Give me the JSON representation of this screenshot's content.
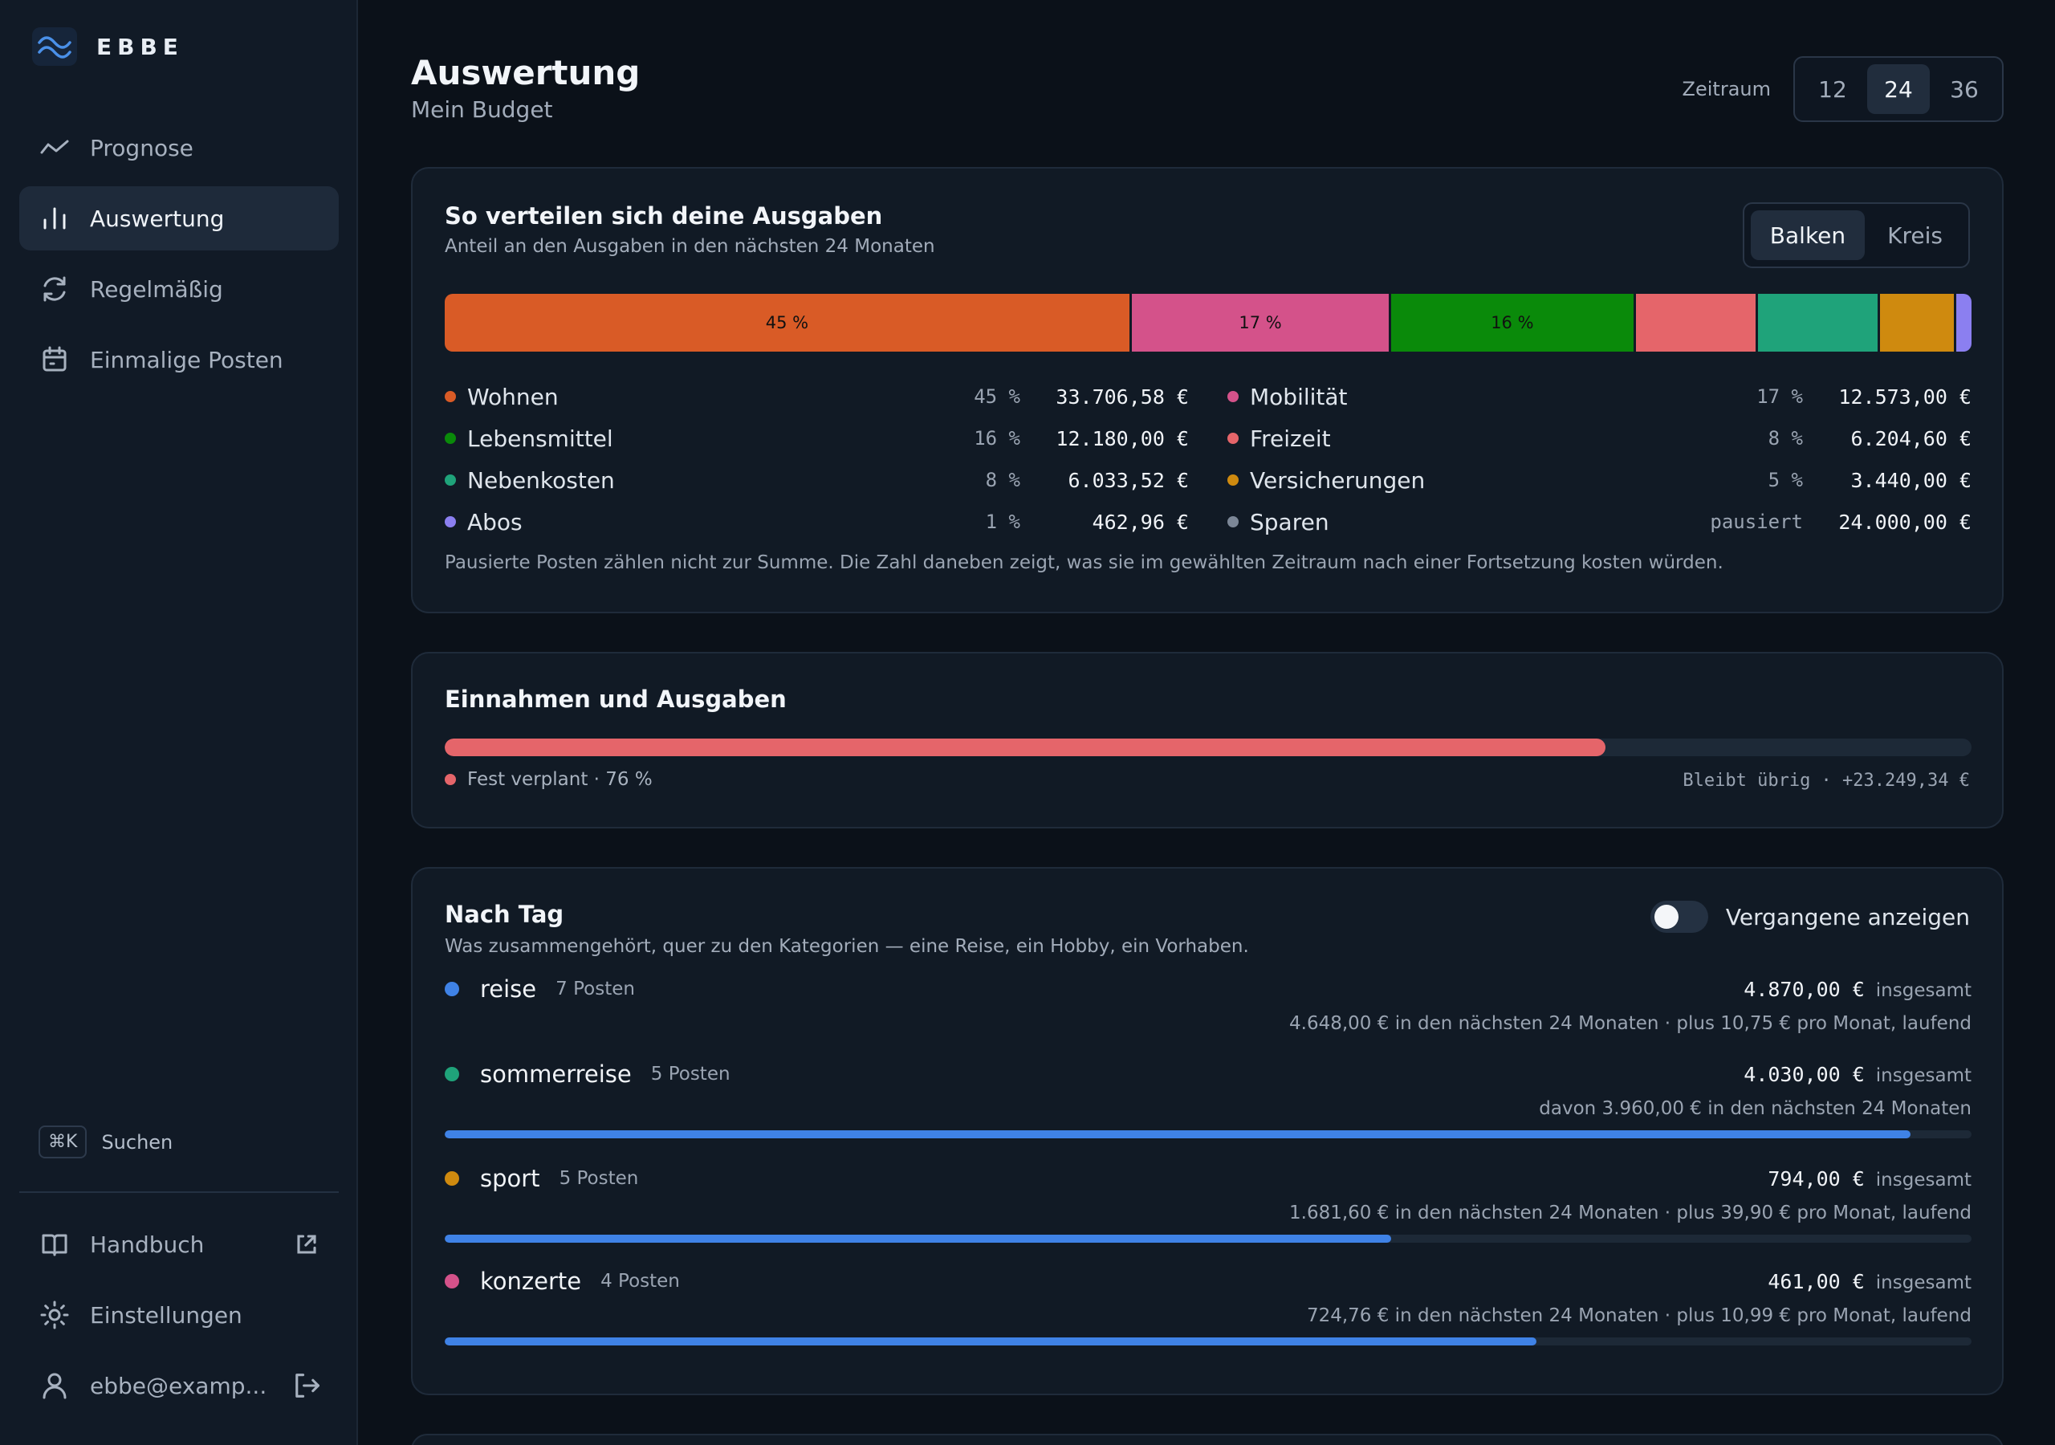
{
  "sidebar": {
    "brand": "EBBE",
    "nav": [
      {
        "label": "Prognose",
        "icon": "trend-icon",
        "active": false
      },
      {
        "label": "Auswertung",
        "icon": "bar-chart-icon",
        "active": true
      },
      {
        "label": "Regelmäßig",
        "icon": "refresh-icon",
        "active": false
      },
      {
        "label": "Einmalige Posten",
        "icon": "calendar-icon",
        "active": false
      }
    ],
    "search": {
      "shortcut": "⌘K",
      "label": "Suchen"
    },
    "bottom": [
      {
        "label": "Handbuch",
        "icon": "book-icon",
        "trailing": "external-link-icon"
      },
      {
        "label": "Einstellungen",
        "icon": "sun-gear-icon"
      },
      {
        "label": "ebbe@examp...",
        "icon": "user-icon",
        "trailing": "logout-icon"
      }
    ]
  },
  "header": {
    "title": "Auswertung",
    "subtitle": "Mein Budget",
    "range_label": "Zeitraum",
    "range_options": [
      "12",
      "24",
      "36"
    ],
    "range_selected": "24"
  },
  "distribution": {
    "title": "So verteilen sich deine Ausgaben",
    "subtitle": "Anteil an den Ausgaben in den nächsten 24 Monaten",
    "view_options": [
      "Balken",
      "Kreis"
    ],
    "view_selected": "Balken",
    "footnote": "Pausierte Posten zählen nicht zur Summe. Die Zahl daneben zeigt, was sie im gewählten Zeitraum nach einer Fortsetzung kosten würden.",
    "segments": [
      {
        "name": "Wohnen",
        "share": 45,
        "label": "45 %",
        "color": "#d95b26"
      },
      {
        "name": "Mobilität",
        "share": 17,
        "label": "17 %",
        "color": "#d4528a"
      },
      {
        "name": "Lebensmittel",
        "share": 16,
        "label": "16 %",
        "color": "#0a8a0a"
      },
      {
        "name": "Freizeit",
        "share": 8,
        "label": "",
        "color": "#e5656a"
      },
      {
        "name": "Nebenkosten",
        "share": 8,
        "label": "",
        "color": "#1fa37a"
      },
      {
        "name": "Versicherungen",
        "share": 5,
        "label": "",
        "color": "#cf8a0f"
      },
      {
        "name": "Abos",
        "share": 1,
        "label": "",
        "color": "#8b7ff0"
      }
    ],
    "legend": [
      {
        "name": "Wohnen",
        "pct": "45 %",
        "amount": "33.706,58 €",
        "color": "#d95b26"
      },
      {
        "name": "Mobilität",
        "pct": "17 %",
        "amount": "12.573,00 €",
        "color": "#d4528a"
      },
      {
        "name": "Lebensmittel",
        "pct": "16 %",
        "amount": "12.180,00 €",
        "color": "#0a8a0a"
      },
      {
        "name": "Freizeit",
        "pct": "8 %",
        "amount": "6.204,60 €",
        "color": "#e5656a"
      },
      {
        "name": "Nebenkosten",
        "pct": "8 %",
        "amount": "6.033,52 €",
        "color": "#1fa37a"
      },
      {
        "name": "Versicherungen",
        "pct": "5 %",
        "amount": "3.440,00 €",
        "color": "#cf8a0f"
      },
      {
        "name": "Abos",
        "pct": "1 %",
        "amount": "462,96 €",
        "color": "#8b7ff0"
      },
      {
        "name": "Sparen",
        "pct": "pausiert",
        "amount": "24.000,00 €",
        "color": "#7c8797"
      }
    ]
  },
  "income": {
    "title": "Einnahmen und Ausgaben",
    "planned_fraction": 0.76,
    "planned_label": "Fest verplant · 76 %",
    "remaining_label": "Bleibt übrig · +23.249,34 €",
    "color": "#e5656a"
  },
  "tags": {
    "title": "Nach Tag",
    "subtitle": "Was zusammengehört, quer zu den Kategorien — eine Reise, ein Hobby, ein Vorhaben.",
    "toggle_label": "Vergangene anzeigen",
    "toggle_on": false,
    "total_suffix": "insgesamt",
    "items": [
      {
        "name": "reise",
        "count": "7 Posten",
        "total": "4.870,00 €",
        "detail": "4.648,00 € in den nächsten 24 Monaten · plus 10,75 € pro Monat, laufend",
        "color": "#3f82e6",
        "progress": null
      },
      {
        "name": "sommerreise",
        "count": "5 Posten",
        "total": "4.030,00 €",
        "detail": "davon 3.960,00 € in den nächsten 24 Monaten",
        "color": "#1fa37a",
        "progress": 0.96
      },
      {
        "name": "sport",
        "count": "5 Posten",
        "total": "794,00 €",
        "detail": "1.681,60 € in den nächsten 24 Monaten · plus 39,90 € pro Monat, laufend",
        "color": "#cf8a0f",
        "progress": 0.62
      },
      {
        "name": "konzerte",
        "count": "4 Posten",
        "total": "461,00 €",
        "detail": "724,76 € in den nächsten 24 Monaten · plus 10,99 € pro Monat, laufend",
        "color": "#d4528a",
        "progress": 0.715
      }
    ]
  }
}
